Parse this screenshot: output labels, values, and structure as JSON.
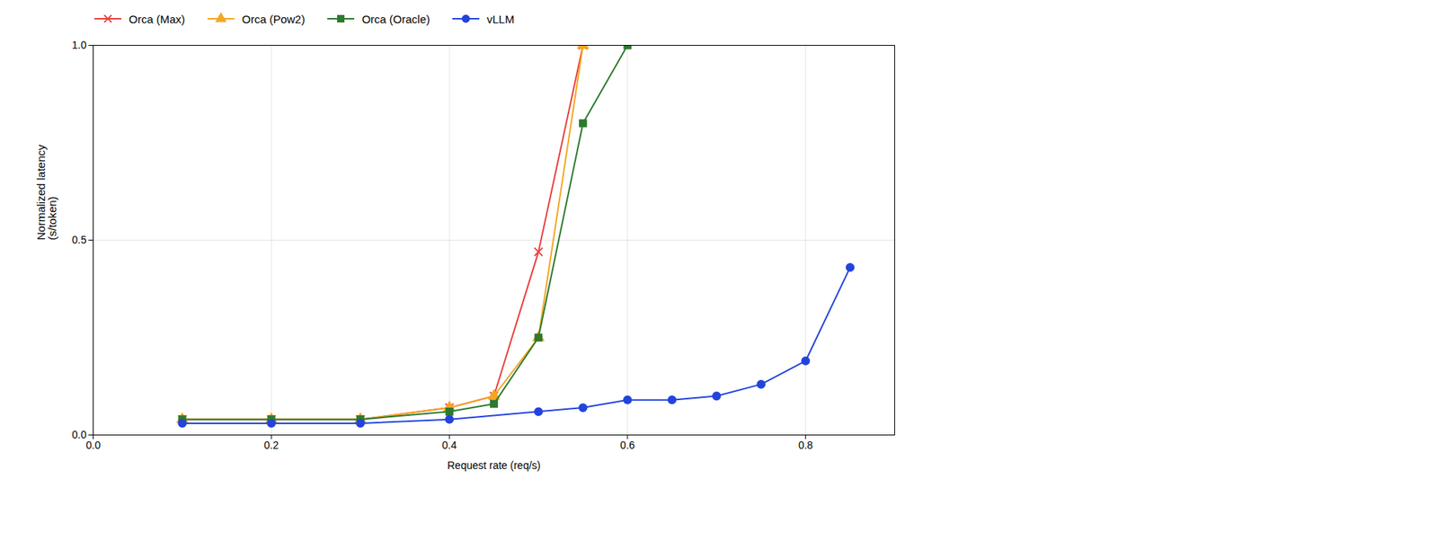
{
  "chart_data": {
    "type": "line",
    "xlabel": "Request rate (req/s)",
    "ylabel": "Normalized latency\n(s/token)",
    "xlim": [
      0.0,
      0.9
    ],
    "ylim": [
      0.0,
      1.0
    ],
    "xticks": [
      {
        "value": 0.0,
        "label": "0.0"
      },
      0.2,
      0.4,
      0.6,
      0.8
    ],
    "yticks": [
      {
        "value": 0.0,
        "label": "0.0"
      },
      0.5,
      {
        "value": 1.0,
        "label": "1.0"
      }
    ],
    "grid": true,
    "legend": "top",
    "series": [
      {
        "name": "Orca (Max)",
        "color": "#e8413c",
        "marker": "x",
        "x": [
          0.1,
          0.2,
          0.3,
          0.4,
          0.45,
          0.5,
          0.55
        ],
        "values": [
          0.04,
          0.04,
          0.04,
          0.07,
          0.1,
          0.47,
          1.0
        ]
      },
      {
        "name": "Orca (Pow2)",
        "color": "#f5a623",
        "marker": "triangle",
        "x": [
          0.1,
          0.2,
          0.3,
          0.4,
          0.45,
          0.5,
          0.55
        ],
        "values": [
          0.04,
          0.04,
          0.04,
          0.07,
          0.1,
          0.25,
          1.0
        ]
      },
      {
        "name": "Orca (Oracle)",
        "color": "#2d7a2d",
        "marker": "square",
        "x": [
          0.1,
          0.2,
          0.3,
          0.4,
          0.45,
          0.5,
          0.55,
          0.6
        ],
        "values": [
          0.04,
          0.04,
          0.04,
          0.06,
          0.08,
          0.25,
          0.8,
          1.0
        ]
      },
      {
        "name": "vLLM",
        "color": "#2244dd",
        "marker": "circle",
        "x": [
          0.1,
          0.2,
          0.3,
          0.4,
          0.5,
          0.55,
          0.6,
          0.65,
          0.7,
          0.75,
          0.8,
          0.85
        ],
        "values": [
          0.03,
          0.03,
          0.03,
          0.04,
          0.06,
          0.07,
          0.09,
          0.09,
          0.1,
          0.13,
          0.19,
          0.43
        ]
      }
    ]
  }
}
